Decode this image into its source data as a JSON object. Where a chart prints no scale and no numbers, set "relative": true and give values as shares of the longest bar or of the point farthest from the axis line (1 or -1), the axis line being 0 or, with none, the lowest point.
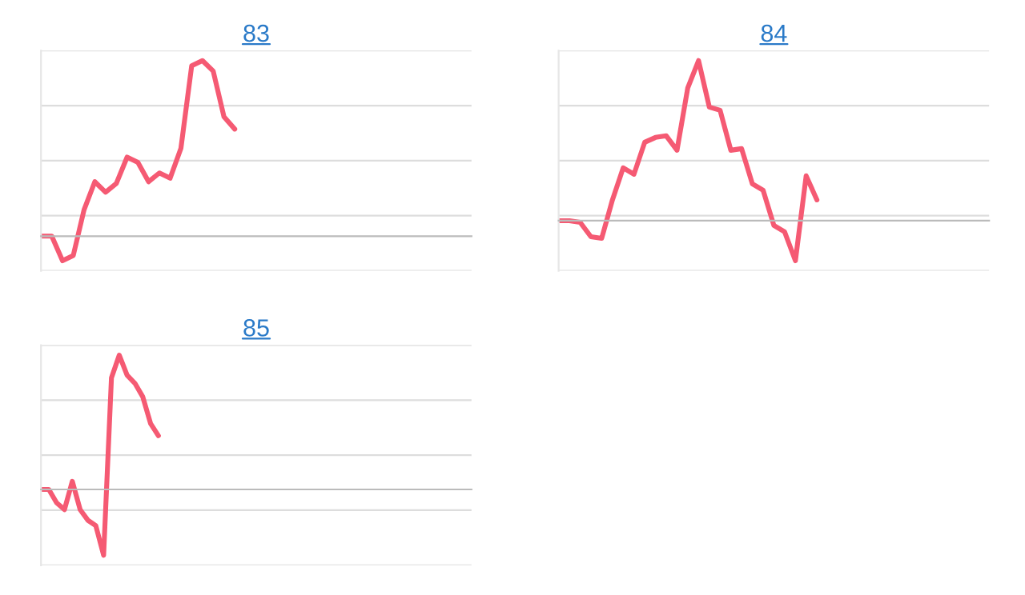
{
  "chart_data": [
    {
      "type": "line",
      "title": "83",
      "relative": true,
      "grid": "y",
      "categories": [
        null,
        null,
        null,
        null,
        null,
        null,
        null,
        null,
        null,
        null,
        null,
        null,
        null,
        null,
        null,
        null,
        null,
        null,
        null,
        null,
        null,
        null,
        null,
        null,
        null,
        null,
        null,
        null,
        null,
        null,
        null,
        null,
        null,
        null,
        null,
        null,
        null,
        null,
        null,
        null,
        null
      ],
      "series": [
        {
          "color": "#f55a73",
          "values": [
            0,
            0,
            -0.14,
            -0.11,
            0.15,
            0.31,
            0.25,
            0.3,
            0.45,
            0.42,
            0.31,
            0.36,
            0.33,
            0.5,
            0.97,
            1,
            0.94,
            0.68,
            0.61,
            null,
            null,
            null,
            null,
            null,
            null,
            null,
            null,
            null,
            null,
            null,
            null,
            null,
            null,
            null,
            null,
            null,
            null,
            null,
            null,
            null,
            null
          ]
        }
      ]
    },
    {
      "type": "line",
      "title": "84",
      "relative": true,
      "grid": "y",
      "categories": [
        null,
        null,
        null,
        null,
        null,
        null,
        null,
        null,
        null,
        null,
        null,
        null,
        null,
        null,
        null,
        null,
        null,
        null,
        null,
        null,
        null,
        null,
        null,
        null,
        null,
        null,
        null,
        null,
        null,
        null,
        null,
        null,
        null,
        null,
        null,
        null,
        null,
        null,
        null,
        null,
        null
      ],
      "series": [
        {
          "color": "#f55a73",
          "values": [
            0,
            0,
            -0.01,
            -0.1,
            -0.11,
            0.13,
            0.33,
            0.29,
            0.49,
            0.52,
            0.53,
            0.44,
            0.83,
            1,
            0.71,
            0.69,
            0.44,
            0.45,
            0.23,
            0.19,
            -0.03,
            -0.07,
            -0.25,
            0.28,
            0.13,
            null,
            null,
            null,
            null,
            null,
            null,
            null,
            null,
            null,
            null,
            null,
            null,
            null,
            null,
            null,
            null
          ]
        }
      ]
    },
    {
      "type": "line",
      "title": "85",
      "relative": true,
      "grid": "y",
      "categories": [
        null,
        null,
        null,
        null,
        null,
        null,
        null,
        null,
        null,
        null,
        null,
        null,
        null,
        null,
        null,
        null,
        null,
        null,
        null,
        null,
        null,
        null,
        null,
        null,
        null,
        null,
        null,
        null,
        null,
        null,
        null,
        null,
        null,
        null,
        null,
        null,
        null,
        null,
        null,
        null,
        null,
        null,
        null,
        null,
        null,
        null,
        null,
        null,
        null,
        null,
        null,
        null,
        null,
        null,
        null,
        null
      ],
      "series": [
        {
          "color": "#f55a73",
          "values": [
            0,
            0,
            -0.1,
            -0.15,
            0.06,
            -0.15,
            -0.23,
            -0.27,
            -0.49,
            0.83,
            1,
            0.85,
            0.79,
            0.69,
            0.49,
            0.4,
            null,
            null,
            null,
            null,
            null,
            null,
            null,
            null,
            null,
            null,
            null,
            null,
            null,
            null,
            null,
            null,
            null,
            null,
            null,
            null,
            null,
            null,
            null,
            null,
            null,
            null,
            null,
            null,
            null,
            null,
            null,
            null,
            null,
            null,
            null,
            null,
            null,
            null,
            null,
            null
          ]
        }
      ]
    }
  ]
}
